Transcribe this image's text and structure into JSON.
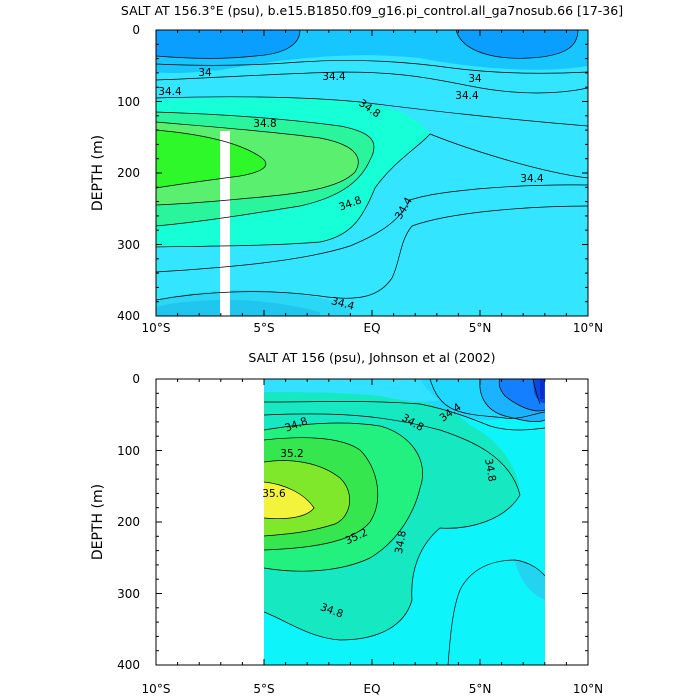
{
  "chart_data": [
    {
      "type": "contour",
      "title": "SALT AT 156.3°E (psu), b.e15.B1850.f09_g16.pi_control.all_ga7nosub.66 [17-36]",
      "ylabel": "DEPTH (m)",
      "xlim": [
        -10,
        10
      ],
      "ylim": [
        0,
        400
      ],
      "y_reversed": true,
      "xticks": [
        "10°S",
        "5°S",
        "EQ",
        "5°N",
        "10°N"
      ],
      "yticks": [
        "0",
        "100",
        "200",
        "300",
        "400"
      ],
      "data_extent_lat": [
        -10,
        10
      ],
      "missing_column_lat": [
        -6.7,
        -6.2
      ],
      "contour_labels": [
        {
          "text": "34",
          "lat": -7.3,
          "depth": 58
        },
        {
          "text": "34",
          "lat": 5.0,
          "depth": 65
        },
        {
          "text": "34.4",
          "lat": -8.2,
          "depth": 88
        },
        {
          "text": "34.4",
          "lat": -0.9,
          "depth": 65
        },
        {
          "text": "34.4",
          "lat": 4.0,
          "depth": 90
        },
        {
          "text": "34.4",
          "lat": 7.0,
          "depth": 205
        },
        {
          "text": "34.4",
          "lat": 1.4,
          "depth": 246
        },
        {
          "text": "34.4",
          "lat": -1.4,
          "depth": 380
        },
        {
          "text": "34.8",
          "lat": -4.9,
          "depth": 130
        },
        {
          "text": "34.8",
          "lat": 0.2,
          "depth": 108
        },
        {
          "text": "34.8",
          "lat": -1.1,
          "depth": 240
        }
      ]
    },
    {
      "type": "contour",
      "title": "SALT AT 156 (psu), Johnson et al (2002)",
      "ylabel": "DEPTH (m)",
      "xlim": [
        -10,
        10
      ],
      "ylim": [
        0,
        400
      ],
      "y_reversed": true,
      "xticks": [
        "10°S",
        "5°S",
        "EQ",
        "5°N",
        "10°N"
      ],
      "yticks": [
        "0",
        "100",
        "200",
        "300",
        "400"
      ],
      "data_extent_lat": [
        -5,
        8
      ],
      "contour_labels": [
        {
          "text": "34.4",
          "lat": 3.5,
          "depth": 58
        },
        {
          "text": "34.8",
          "lat": -4.4,
          "depth": 68
        },
        {
          "text": "34.8",
          "lat": 1.6,
          "depth": 62
        },
        {
          "text": "34.8",
          "lat": 5.2,
          "depth": 135
        },
        {
          "text": "34.8",
          "lat": 1.2,
          "depth": 230
        },
        {
          "text": "34.8",
          "lat": -2.2,
          "depth": 345
        },
        {
          "text": "35.2",
          "lat": -3.4,
          "depth": 108
        },
        {
          "text": "35.2",
          "lat": -0.7,
          "depth": 218
        },
        {
          "text": "35.6",
          "lat": -4.1,
          "depth": 163
        }
      ]
    }
  ]
}
